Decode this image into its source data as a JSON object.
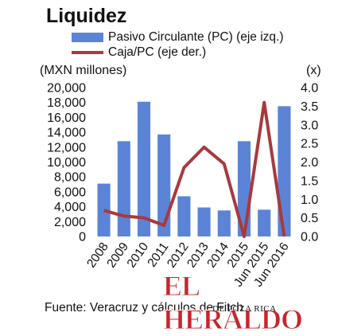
{
  "header": {
    "title": "Liquidez",
    "legend": [
      {
        "label": "Pasivo Circulante (PC) (eje izq.)",
        "color": "#5B84D6",
        "kind": "bar"
      },
      {
        "label": "Caja/PC (eje der.)",
        "color": "#A8393E",
        "kind": "line"
      }
    ],
    "left_unit": "(MXN millones)",
    "right_unit": "(x)"
  },
  "source": "Fuente: Veracruz y cálculos de Fitch.",
  "watermark": {
    "main": "EL HERALDO",
    "sub": "DE POZA RICA"
  },
  "chart_data": {
    "type": "bar",
    "categories": [
      "2008",
      "2009",
      "2010",
      "2011",
      "2012",
      "2013",
      "2014",
      "2015",
      "Jun 2015",
      "Jun 2016"
    ],
    "series": [
      {
        "name": "Pasivo Circulante (PC) (eje izq.)",
        "type": "bar",
        "axis": "left",
        "color": "#5B84D6",
        "values": [
          7100,
          12800,
          18100,
          13700,
          5400,
          3900,
          3500,
          12800,
          3600,
          17500
        ]
      },
      {
        "name": "Caja/PC (eje der.)",
        "type": "line",
        "axis": "right",
        "color": "#A8393E",
        "values": [
          0.7,
          0.55,
          0.5,
          0.3,
          1.85,
          2.4,
          1.95,
          0.0,
          3.6,
          0.0
        ]
      }
    ],
    "ylim_left": [
      0,
      20000
    ],
    "yticks_left": [
      "0",
      "2,000",
      "4,000",
      "6,000",
      "8,000",
      "10,000",
      "12,000",
      "14,000",
      "16,000",
      "18,000",
      "20,000"
    ],
    "ylim_right": [
      0,
      4
    ],
    "yticks_right": [
      "0.0",
      "0.5",
      "1.0",
      "1.5",
      "2.0",
      "2.5",
      "3.0",
      "3.5",
      "4.0"
    ],
    "grid": false,
    "legend_position": "top"
  }
}
